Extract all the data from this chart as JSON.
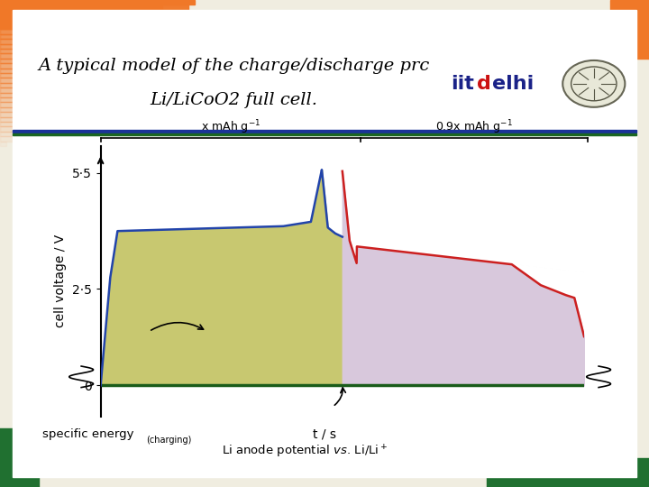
{
  "title_line1": "A typical model of the charge/discharge prc",
  "title_line2": "Li/LiCoO2 full cell.",
  "bg_color": "#ffffff",
  "charge_fill_color": "#c8c870",
  "discharge_fill_color": "#d8c8dc",
  "charge_line_color": "#2244aa",
  "discharge_line_color": "#cc2020",
  "baseline_color": "#1a5c1a",
  "ylabel": "cell voltage / V",
  "ytick_55": "5·5",
  "ytick_25": "2·5",
  "ytick_0": "0",
  "top_label_left": "x mAh g$^{-1}$",
  "top_label_right": "0.9x mAh g$^{-1}$",
  "border_blue": "#1a3399",
  "border_green": "#1a6622",
  "orange_strip": "#f07828",
  "green_strip": "#207030",
  "frame_bg": "#f0ede0"
}
